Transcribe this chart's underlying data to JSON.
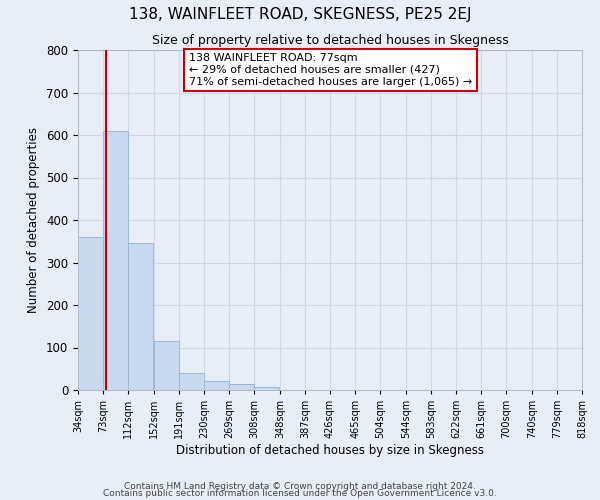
{
  "title": "138, WAINFLEET ROAD, SKEGNESS, PE25 2EJ",
  "subtitle": "Size of property relative to detached houses in Skegness",
  "xlabel": "Distribution of detached houses by size in Skegness",
  "ylabel": "Number of detached properties",
  "footnote1": "Contains HM Land Registry data © Crown copyright and database right 2024.",
  "footnote2": "Contains public sector information licensed under the Open Government Licence v3.0.",
  "bin_edges": [
    34,
    73,
    112,
    152,
    191,
    230,
    269,
    308,
    348,
    387,
    426,
    465,
    504,
    544,
    583,
    622,
    661,
    700,
    740,
    779,
    818
  ],
  "bin_labels": [
    "34sqm",
    "73sqm",
    "112sqm",
    "152sqm",
    "191sqm",
    "230sqm",
    "269sqm",
    "308sqm",
    "348sqm",
    "387sqm",
    "426sqm",
    "465sqm",
    "504sqm",
    "544sqm",
    "583sqm",
    "622sqm",
    "661sqm",
    "700sqm",
    "740sqm",
    "779sqm",
    "818sqm"
  ],
  "bar_heights": [
    360,
    610,
    345,
    115,
    40,
    22,
    14,
    8,
    1,
    0,
    0,
    0,
    0,
    0,
    0,
    0,
    0,
    0,
    0,
    1
  ],
  "bar_color": "#c9d9f0",
  "bar_edge_color": "#a0b8d8",
  "grid_color": "#d0d8e8",
  "background_color": "#e8eef8",
  "vline_x": 77,
  "vline_color": "#cc0000",
  "ylim": [
    0,
    800
  ],
  "yticks": [
    0,
    100,
    200,
    300,
    400,
    500,
    600,
    700,
    800
  ],
  "annotation_title": "138 WAINFLEET ROAD: 77sqm",
  "annotation_line1": "← 29% of detached houses are smaller (427)",
  "annotation_line2": "71% of semi-detached houses are larger (1,065) →",
  "annotation_box_color": "#ffffff",
  "annotation_box_edge": "#cc0000"
}
